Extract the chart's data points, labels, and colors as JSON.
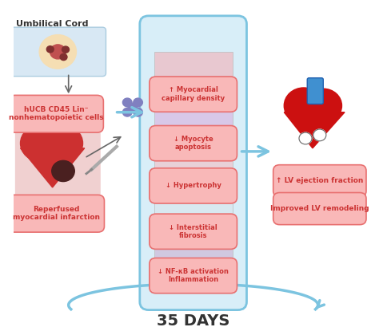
{
  "title": "35 DAYS",
  "title_fontsize": 14,
  "title_fontweight": "bold",
  "bg_color": "#ffffff",
  "fig_width": 4.74,
  "fig_height": 4.15,
  "dpi": 100,
  "label_umbilical": "Umbilical Cord",
  "label_cells": "hUCB CD45 Lin⁻\nnonhematopoietic cells",
  "label_reperfused": "Reperfused\nmyocardial infarction",
  "label_myocardial": "↑ Myocardial\ncapillary density",
  "label_apoptosis": "↓ Myocyte\napoptosis",
  "label_hypertrophy": "↓ Hypertrophy",
  "label_fibrosis": "↓ Interstitial\nfibrosis",
  "label_nfkb": "↓ NF-κB activation\nInflammation",
  "label_ejection": "↑ LV ejection fraction",
  "label_remodeling": "Improved LV remodeling",
  "pink_label_color": "#f08080",
  "pink_label_facecolor": "#f9b8b8",
  "pink_label_edgecolor": "#e87070",
  "center_column_color": "#d8eef8",
  "center_column_edgecolor": "#7cc4e0",
  "arrow_color": "#7cc4e0",
  "sub_label_facecolor": "#f0c0c8",
  "sub_label_edgecolor": "#e87070",
  "text_dark": "#333333",
  "text_pink_dark": "#cc3333"
}
